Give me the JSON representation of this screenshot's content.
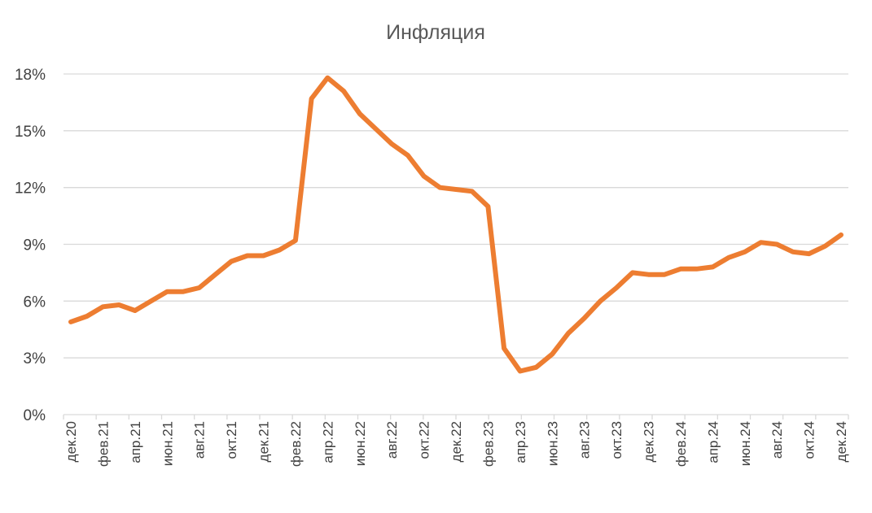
{
  "chart_data": {
    "type": "line",
    "title": "Инфляция",
    "xlabel": "",
    "ylabel": "",
    "ylim": [
      0,
      18
    ],
    "yticks": [
      "0%",
      "3%",
      "6%",
      "9%",
      "12%",
      "15%",
      "18%"
    ],
    "ytick_values": [
      0,
      3,
      6,
      9,
      12,
      15,
      18
    ],
    "grid": true,
    "legend": "none",
    "series_color": "#ED7D31",
    "categories": [
      "дек.20",
      "янв.21",
      "фев.21",
      "мар.21",
      "апр.21",
      "май.21",
      "июн.21",
      "июл.21",
      "авг.21",
      "сен.21",
      "окт.21",
      "ноя.21",
      "дек.21",
      "янв.22",
      "фев.22",
      "мар.22",
      "апр.22",
      "май.22",
      "июн.22",
      "июл.22",
      "авг.22",
      "сен.22",
      "окт.22",
      "ноя.22",
      "дек.22",
      "янв.23",
      "фев.23",
      "мар.23",
      "апр.23",
      "май.23",
      "июн.23",
      "июл.23",
      "авг.23",
      "сен.23",
      "окт.23",
      "ноя.23",
      "дек.23",
      "янв.24",
      "фев.24",
      "мар.24",
      "апр.24",
      "май.24",
      "июн.24",
      "июл.24",
      "авг.24",
      "сен.24",
      "окт.24",
      "ноя.24",
      "дек.24"
    ],
    "xtick_labels": [
      "дек.20",
      "фев.21",
      "апр.21",
      "июн.21",
      "авг.21",
      "окт.21",
      "дек.21",
      "фев.22",
      "апр.22",
      "июн.22",
      "авг.22",
      "окт.22",
      "дек.22",
      "фев.23",
      "апр.23",
      "июн.23",
      "авг.23",
      "окт.23",
      "дек.23",
      "фев.24",
      "апр.24",
      "июн.24",
      "авг.24",
      "окт.24",
      "дек.24"
    ],
    "series": [
      {
        "values": [
          4.9,
          5.2,
          5.7,
          5.8,
          5.5,
          6.0,
          6.5,
          6.5,
          6.7,
          7.4,
          8.1,
          8.4,
          8.4,
          8.7,
          9.2,
          16.7,
          17.8,
          17.1,
          15.9,
          15.1,
          14.3,
          13.7,
          12.6,
          12.0,
          11.9,
          11.8,
          11.0,
          3.5,
          2.3,
          2.5,
          3.2,
          4.3,
          5.1,
          6.0,
          6.7,
          7.5,
          7.4,
          7.4,
          7.7,
          7.7,
          7.8,
          8.3,
          8.6,
          9.1,
          9.0,
          8.6,
          8.5,
          8.9,
          9.5
        ]
      }
    ]
  }
}
